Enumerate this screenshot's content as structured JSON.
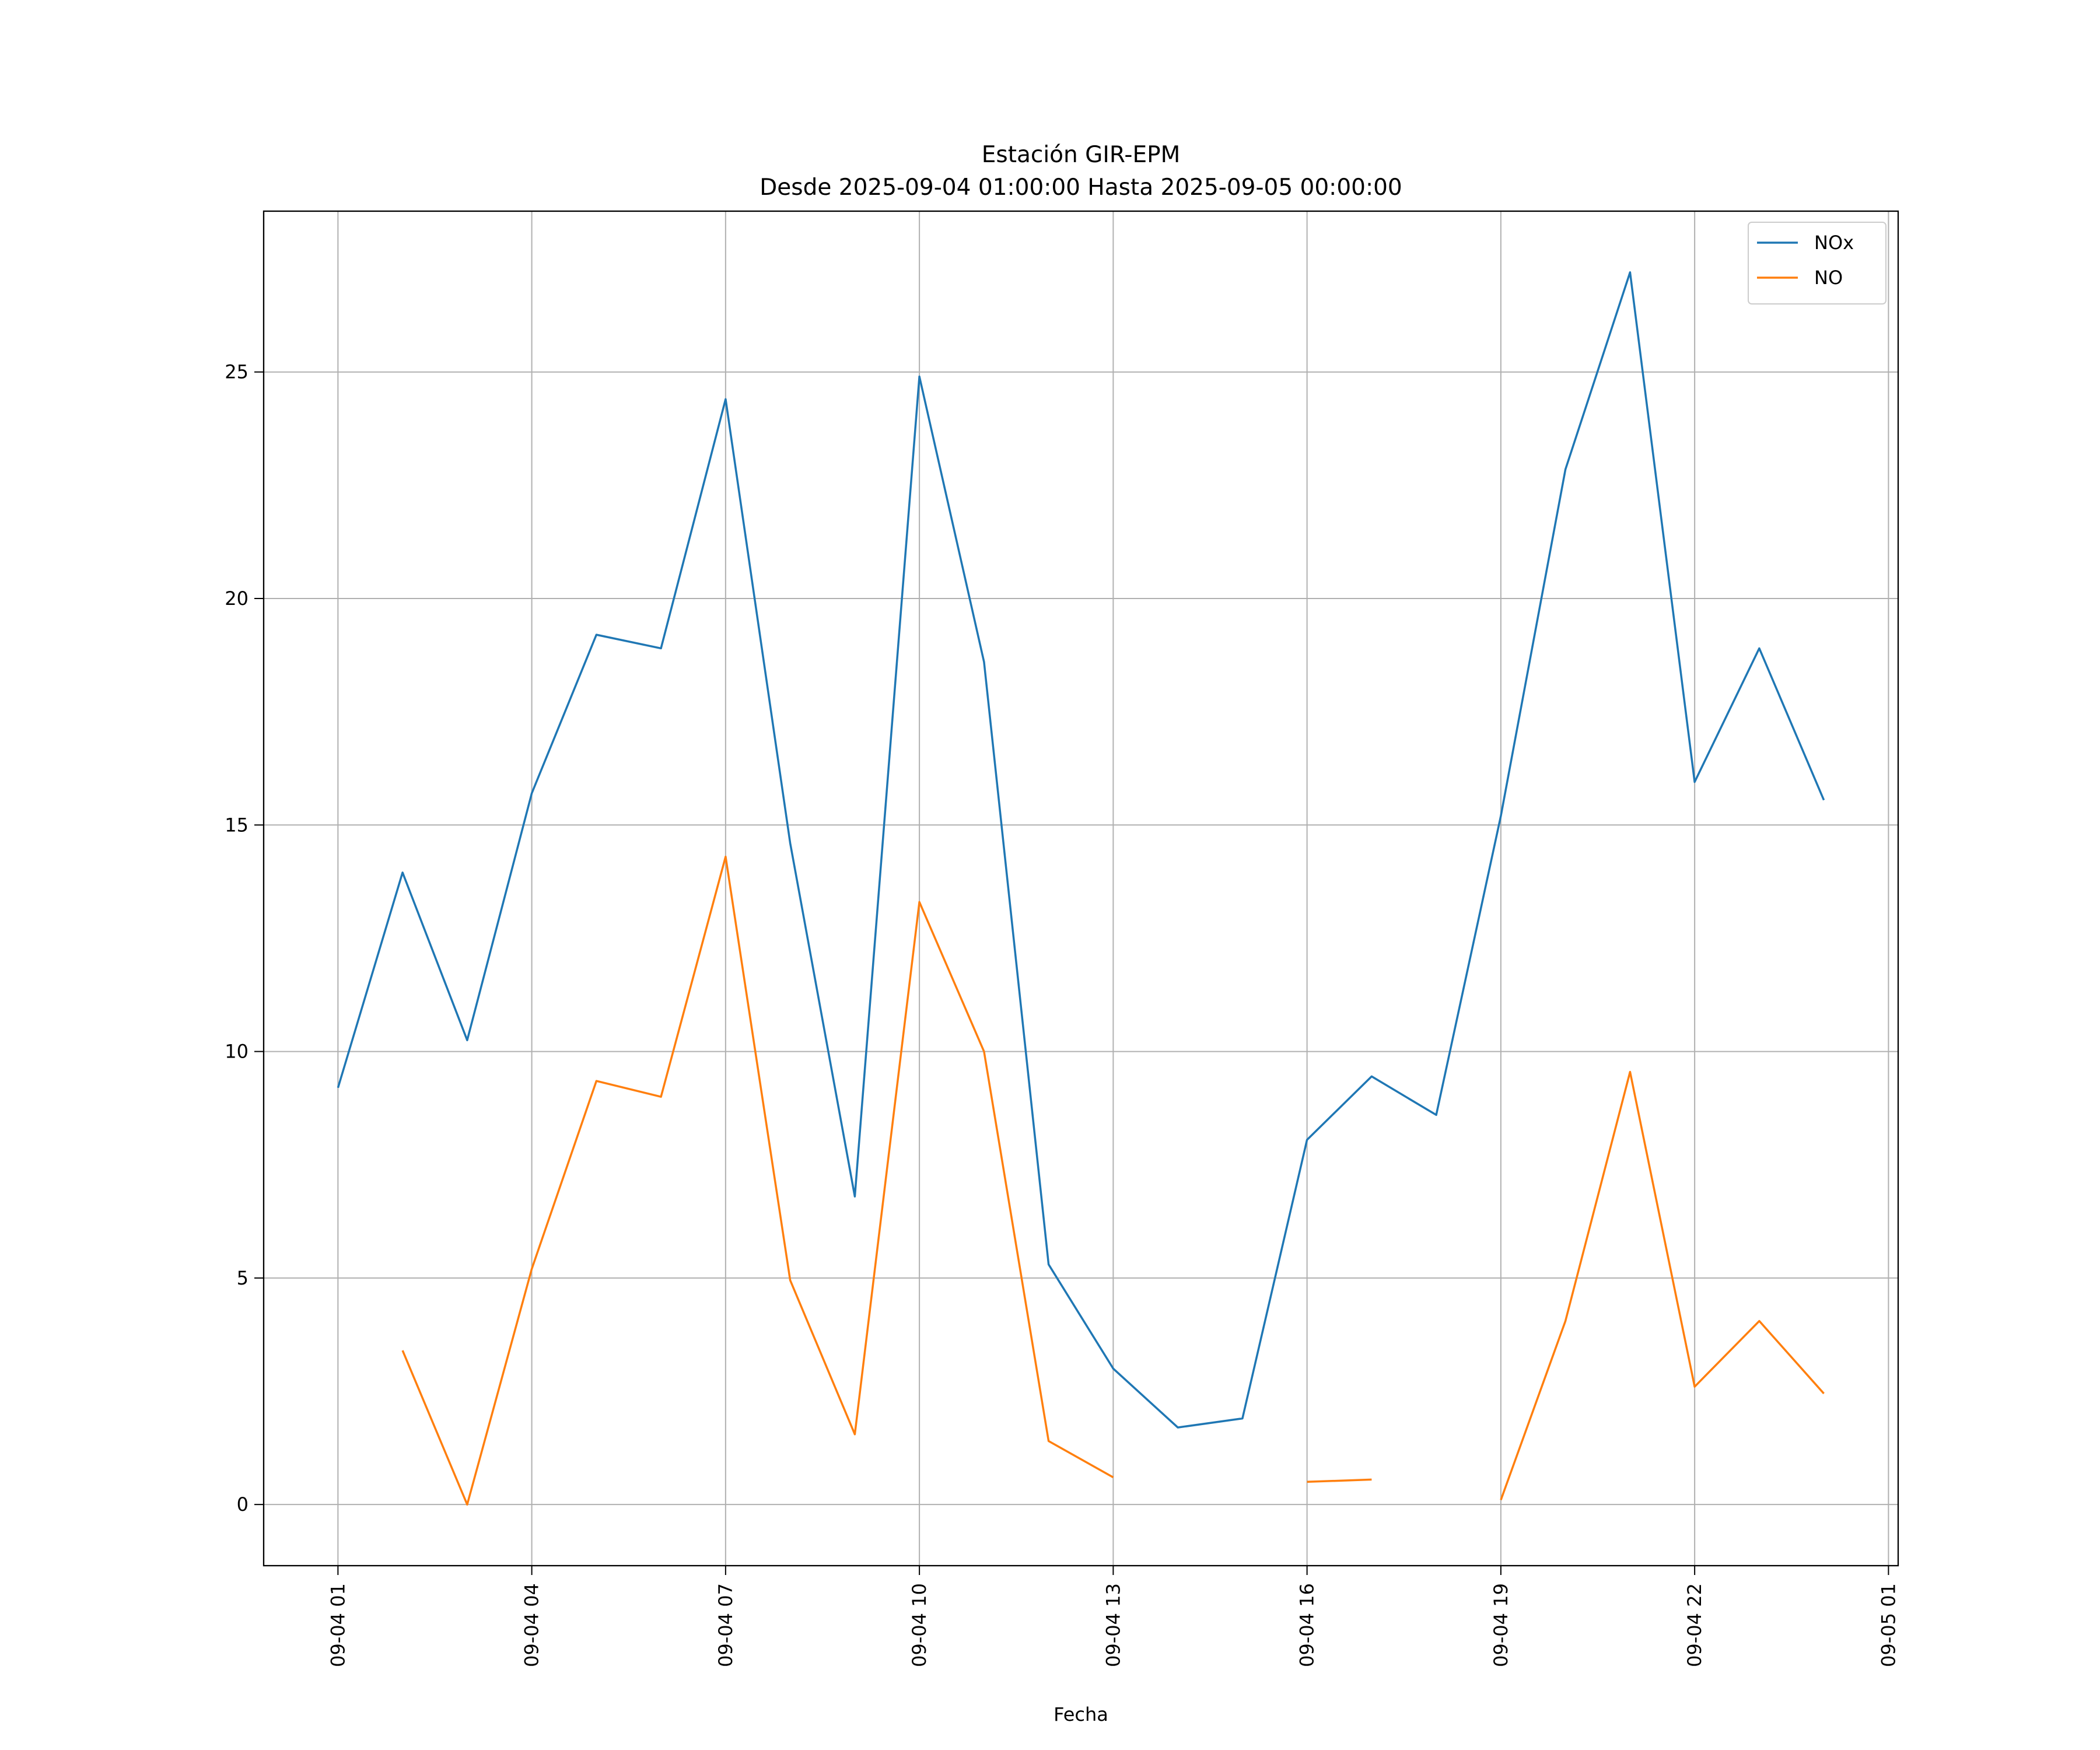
{
  "chart_data": {
    "type": "line",
    "title": "Estación GIR-EPM",
    "subtitle": "Desde 2025-09-04 01:00:00 Hasta 2025-09-05 00:00:00",
    "xlabel": "Fecha",
    "ylabel": "",
    "x_hours": [
      1,
      2,
      3,
      4,
      5,
      6,
      7,
      8,
      9,
      10,
      11,
      12,
      13,
      14,
      15,
      16,
      17,
      18,
      19,
      20,
      21,
      22,
      23,
      24
    ],
    "x_unit": "hours since 2025-09-04 00:00",
    "xlim": [
      -0.15,
      25.15
    ],
    "ylim": [
      -1.35,
      28.55
    ],
    "x_ticks": [
      {
        "value": 1,
        "label": "09-04 01"
      },
      {
        "value": 4,
        "label": "09-04 04"
      },
      {
        "value": 7,
        "label": "09-04 07"
      },
      {
        "value": 10,
        "label": "09-04 10"
      },
      {
        "value": 13,
        "label": "09-04 13"
      },
      {
        "value": 16,
        "label": "09-04 16"
      },
      {
        "value": 19,
        "label": "09-04 19"
      },
      {
        "value": 22,
        "label": "09-04 22"
      },
      {
        "value": 25,
        "label": "09-05 01"
      }
    ],
    "y_ticks": [
      {
        "value": 0,
        "label": "0"
      },
      {
        "value": 5,
        "label": "5"
      },
      {
        "value": 10,
        "label": "10"
      },
      {
        "value": 15,
        "label": "15"
      },
      {
        "value": 20,
        "label": "20"
      },
      {
        "value": 25,
        "label": "25"
      }
    ],
    "grid": true,
    "legend_position": "top-right",
    "series": [
      {
        "name": "NOx",
        "color": "#1f77b4",
        "values": [
          9.2,
          13.95,
          10.25,
          15.7,
          19.2,
          18.9,
          24.4,
          14.6,
          6.8,
          24.9,
          18.6,
          5.3,
          3.0,
          1.7,
          1.9,
          8.05,
          9.45,
          8.6,
          15.2,
          22.85,
          27.2,
          15.95,
          18.9,
          15.55
        ]
      },
      {
        "name": "NO",
        "color": "#ff7f0e",
        "values": [
          null,
          3.4,
          0.0,
          5.2,
          9.35,
          9.0,
          14.3,
          4.95,
          1.55,
          13.3,
          10.0,
          1.4,
          0.6,
          null,
          null,
          0.5,
          0.55,
          null,
          0.1,
          4.05,
          9.55,
          2.6,
          4.05,
          2.45
        ]
      }
    ]
  }
}
